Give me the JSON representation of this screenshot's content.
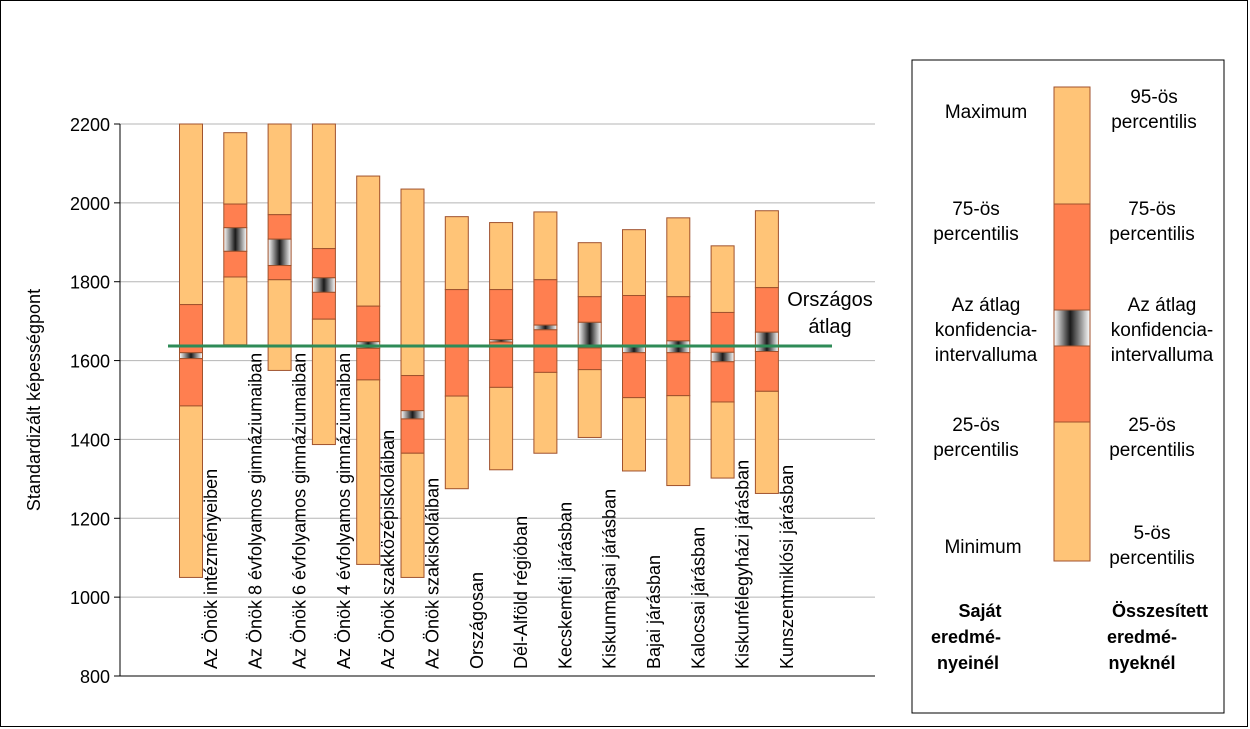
{
  "chart_data": {
    "type": "box",
    "ylabel": "Standardizált képességpont",
    "ylim": [
      800,
      2200
    ],
    "yticks": [
      800,
      1000,
      1200,
      1400,
      1600,
      1800,
      2000,
      2200
    ],
    "reference_line": {
      "label_lines": [
        "Országos",
        "átlag"
      ],
      "value": 1637,
      "color": "#2e8b57"
    },
    "categories": [
      "Az Önök intézményeiben",
      "Az Önök 8 évfolyamos gimnáziumaiban",
      "Az Önök 6 évfolyamos gimnáziumaiban",
      "Az Önök 4 évfolyamos gimnáziumaiban",
      "Az Önök szakközépiskoláiban",
      "Az Önök szakiskoláiban",
      "Országosan",
      "Dél-Alföld régióban",
      "Kecskeméti járásban",
      "Kiskunmajsai járásban",
      "Bajai járásban",
      "Kalocsai járásban",
      "Kiskunfélegyházi járásban",
      "Kunszentmiklósi járásban"
    ],
    "series": [
      {
        "name": "Az Önök intézményeiben",
        "min": 1050,
        "q1": 1485,
        "ci_low": 1605,
        "ci_high": 1620,
        "q3": 1742,
        "max": 2200
      },
      {
        "name": "Az Önök 8 évfolyamos gimnáziumaiban",
        "min": 1640,
        "q1": 1812,
        "ci_low": 1877,
        "ci_high": 1937,
        "q3": 1997,
        "max": 2178
      },
      {
        "name": "Az Önök 6 évfolyamos gimnáziumaiban",
        "min": 1575,
        "q1": 1805,
        "ci_low": 1841,
        "ci_high": 1908,
        "q3": 1970,
        "max": 2200
      },
      {
        "name": "Az Önök 4 évfolyamos gimnáziumaiban",
        "min": 1387,
        "q1": 1705,
        "ci_low": 1773,
        "ci_high": 1810,
        "q3": 1884,
        "max": 2200
      },
      {
        "name": "Az Önök szakközépiskoláiban",
        "min": 1083,
        "q1": 1551,
        "ci_low": 1631,
        "ci_high": 1648,
        "q3": 1738,
        "max": 2068
      },
      {
        "name": "Az Önök szakiskoláiban",
        "min": 1050,
        "q1": 1365,
        "ci_low": 1452,
        "ci_high": 1473,
        "q3": 1562,
        "max": 2035
      },
      {
        "name": "Országosan",
        "min": 1275,
        "q1": 1510,
        "ci_low": 1636,
        "ci_high": 1639,
        "q3": 1780,
        "max": 1965
      },
      {
        "name": "Dél-Alföld régióban",
        "min": 1323,
        "q1": 1532,
        "ci_low": 1647,
        "ci_high": 1653,
        "q3": 1780,
        "max": 1950
      },
      {
        "name": "Kecskeméti járásban",
        "min": 1365,
        "q1": 1570,
        "ci_low": 1678,
        "ci_high": 1690,
        "q3": 1805,
        "max": 1977
      },
      {
        "name": "Kiskunmajsai járásban",
        "min": 1405,
        "q1": 1577,
        "ci_low": 1632,
        "ci_high": 1697,
        "q3": 1762,
        "max": 1899
      },
      {
        "name": "Bajai járásban",
        "min": 1320,
        "q1": 1506,
        "ci_low": 1620,
        "ci_high": 1635,
        "q3": 1765,
        "max": 1932
      },
      {
        "name": "Kalocsai járásban",
        "min": 1283,
        "q1": 1511,
        "ci_low": 1620,
        "ci_high": 1650,
        "q3": 1762,
        "max": 1962
      },
      {
        "name": "Kiskunfélegyházi járásban",
        "min": 1302,
        "q1": 1495,
        "ci_low": 1597,
        "ci_high": 1621,
        "q3": 1722,
        "max": 1891
      },
      {
        "name": "Kunszentmiklósi járásban",
        "min": 1263,
        "q1": 1522,
        "ci_low": 1623,
        "ci_high": 1672,
        "q3": 1785,
        "max": 1980
      }
    ],
    "colors": {
      "outer": "#ffc477",
      "inner": "#ff7f50",
      "border": "#a0522d",
      "grid": "#b5b5b5"
    }
  },
  "legend": {
    "left_labels": [
      "Maximum",
      "75-ös percentilis",
      "Az átlag konfidencia-intervalluma",
      "25-ös percentilis",
      "Minimum"
    ],
    "right_labels": [
      "95-ös percentilis",
      "75-ös percentilis",
      "Az átlag konfidencia-intervalluma",
      "25-ös percentilis",
      "5-ös percentilis"
    ],
    "left_footer": [
      "Saját",
      "eredmé-",
      "nyeinél"
    ],
    "right_footer": [
      "Összesített",
      "eredmé-",
      "nyeknél"
    ]
  }
}
